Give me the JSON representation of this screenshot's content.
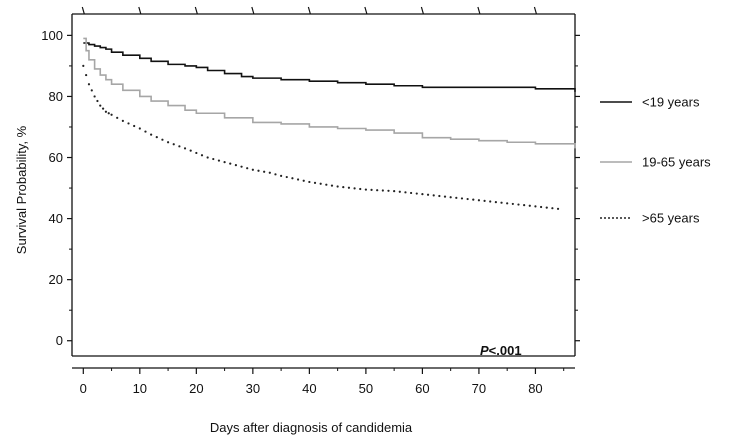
{
  "chart_data": {
    "type": "line",
    "xlabel": "Days after diagnosis of candidemia",
    "ylabel": "Survival Probability, %",
    "xlim": [
      -2,
      87
    ],
    "ylim": [
      -5,
      107
    ],
    "xticks": [
      0,
      10,
      20,
      30,
      40,
      50,
      60,
      70,
      80
    ],
    "yticks": [
      0,
      20,
      40,
      60,
      80,
      100
    ],
    "grid": false,
    "legend_position": "right",
    "annotation": {
      "prefix": "P",
      "rest": "<.001"
    },
    "series": [
      {
        "name": "<19 years",
        "color": "#111111",
        "style": "solid",
        "x": [
          0,
          1,
          2,
          3,
          4,
          5,
          7,
          10,
          12,
          15,
          18,
          20,
          22,
          25,
          28,
          30,
          35,
          40,
          45,
          50,
          55,
          60,
          65,
          70,
          75,
          80,
          87
        ],
        "y": [
          97.5,
          97,
          96.5,
          96,
          95.5,
          94.5,
          93.5,
          92.5,
          91.5,
          90.5,
          90,
          89.5,
          88.5,
          87.5,
          86.5,
          86,
          85.5,
          85,
          84.5,
          84,
          83.5,
          83,
          83,
          83,
          83,
          82.5,
          81.5
        ]
      },
      {
        "name": "19-65 years",
        "color": "#a6a6a6",
        "style": "solid",
        "x": [
          0,
          0.5,
          1,
          2,
          3,
          4,
          5,
          7,
          10,
          12,
          15,
          18,
          20,
          25,
          30,
          35,
          40,
          45,
          50,
          55,
          60,
          65,
          70,
          75,
          80,
          87
        ],
        "y": [
          99,
          95,
          92,
          89,
          87,
          85.5,
          84,
          82,
          80,
          78.5,
          77,
          75.5,
          74.5,
          73,
          71.5,
          71,
          70,
          69.5,
          69,
          68,
          66.5,
          66,
          65.5,
          65,
          64.5,
          63
        ]
      },
      {
        "name": ">65 years",
        "color": "#222222",
        "style": "dotted",
        "x": [
          0,
          1,
          2,
          3,
          4,
          5,
          7,
          10,
          12,
          15,
          18,
          20,
          22,
          25,
          28,
          30,
          33,
          35,
          40,
          45,
          50,
          55,
          60,
          65,
          70,
          75,
          80,
          85
        ],
        "y": [
          90,
          84,
          80,
          77,
          75,
          74,
          72,
          69.5,
          67.5,
          65,
          63,
          61.5,
          60,
          58.5,
          57,
          56,
          55,
          54,
          52,
          50.5,
          49.5,
          49,
          48,
          47,
          46,
          45,
          44,
          43
        ]
      }
    ]
  }
}
